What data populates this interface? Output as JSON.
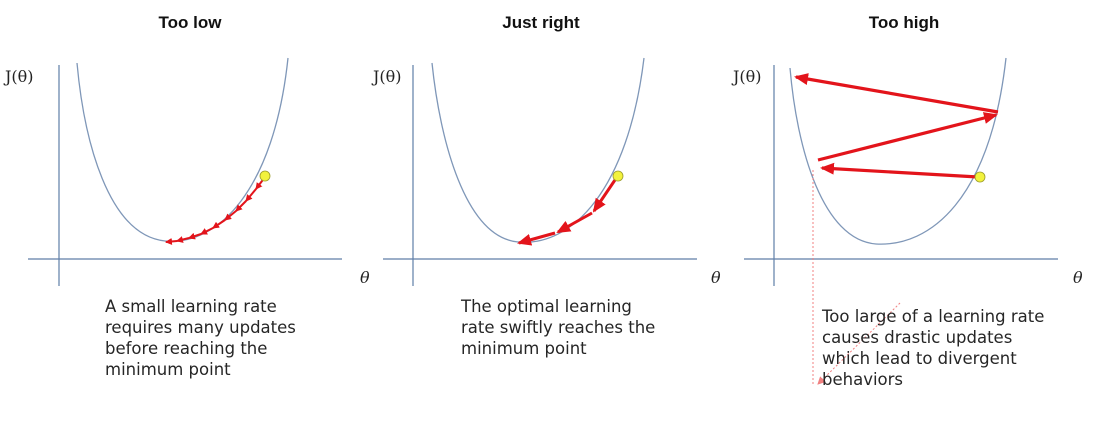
{
  "accent_color": "#e3141b",
  "curve_color": "#7f97b8",
  "axis_color": "#5f7ea8",
  "point_color": "#f2f23c",
  "panels": [
    {
      "title": "Too low",
      "y_label": "J(θ)",
      "x_label": "θ",
      "caption": [
        "A small learning rate",
        "requires many updates",
        "before reaching the",
        "minimum point"
      ]
    },
    {
      "title": "Just right",
      "y_label": "J(θ)",
      "x_label": "θ",
      "caption": [
        "The optimal learning",
        "rate swiftly reaches the",
        "minimum point"
      ]
    },
    {
      "title": "Too high",
      "y_label": "J(θ)",
      "x_label": "θ",
      "caption": [
        "Too large of a learning rate",
        "causes drastic updates",
        "which lead to divergent",
        "behaviors"
      ]
    }
  ]
}
